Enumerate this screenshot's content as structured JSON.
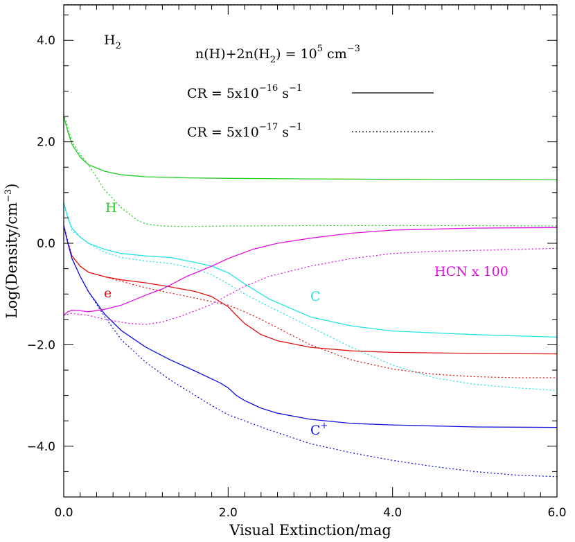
{
  "chart_data": {
    "type": "line",
    "title": "",
    "xlabel": "Visual Extinction/mag",
    "ylabel": "Log(Density/cm",
    "ylabel_sup": "−3",
    "ylabel_tail": ")",
    "xlim": [
      0,
      6
    ],
    "ylim": [
      -5,
      4.7
    ],
    "xticks": [
      {
        "v": 0,
        "label": "0.0"
      },
      {
        "v": 2,
        "label": "2.0"
      },
      {
        "v": 4,
        "label": "4.0"
      },
      {
        "v": 6,
        "label": "6.0"
      }
    ],
    "yticks": [
      {
        "v": -4,
        "label": "−4.0"
      },
      {
        "v": -2,
        "label": "−2.0"
      },
      {
        "v": 0,
        "label": "0.0"
      },
      {
        "v": 2,
        "label": "2.0"
      },
      {
        "v": 4,
        "label": "4.0"
      }
    ],
    "x_minor_step": 0.2,
    "y_minor_step": 0.5,
    "grid": false,
    "legend": {
      "density_prefix": "n(H)+2n(H",
      "density_sub": "2",
      "density_mid": ") = 10",
      "density_exp": "5",
      "density_unit": " cm",
      "density_unit_exp": "−3",
      "cr_high_prefix": "CR = 5x10",
      "cr_high_exp": "−16",
      "cr_high_unit": " s",
      "cr_high_unit_exp": "−1",
      "cr_high_style": "solid",
      "cr_low_prefix": "CR = 5x10",
      "cr_low_exp": "−17",
      "cr_low_unit": " s",
      "cr_low_unit_exp": "−1",
      "cr_low_style": "dotted"
    },
    "labels": {
      "h2": "H",
      "h2_sub": "2",
      "h": "H",
      "e": "e",
      "c": "C",
      "cplus": "C",
      "cplus_sup": "+",
      "hcn": "HCN x 100"
    },
    "colors": {
      "H2": "#000000",
      "H": "#22cc22",
      "C": "#22e5e5",
      "e": "#e01010",
      "Cplus": "#1010dd",
      "HCN": "#e010e0"
    },
    "series": [
      {
        "species": "H2",
        "cr": "5e-16",
        "style": "solid",
        "x": [
          0,
          6
        ],
        "y": [
          4.7,
          4.7
        ]
      },
      {
        "species": "H2",
        "cr": "5e-17",
        "style": "dotted",
        "x": [
          0,
          6
        ],
        "y": [
          4.7,
          4.7
        ]
      },
      {
        "species": "H",
        "cr": "5e-16",
        "style": "solid",
        "x": [
          0,
          0.05,
          0.1,
          0.2,
          0.3,
          0.5,
          0.7,
          1.0,
          1.5,
          2.0,
          3.0,
          4.0,
          5.0,
          6.0
        ],
        "y": [
          2.5,
          2.2,
          1.95,
          1.7,
          1.55,
          1.42,
          1.35,
          1.31,
          1.29,
          1.28,
          1.27,
          1.26,
          1.255,
          1.25
        ]
      },
      {
        "species": "H",
        "cr": "5e-17",
        "style": "dotted",
        "x": [
          0,
          0.1,
          0.2,
          0.3,
          0.5,
          0.7,
          0.9,
          1.0,
          1.2,
          1.5,
          2.0,
          3.0,
          4.0,
          5.0,
          6.0
        ],
        "y": [
          2.55,
          2.0,
          1.75,
          1.55,
          1.05,
          0.7,
          0.45,
          0.38,
          0.34,
          0.33,
          0.34,
          0.35,
          0.35,
          0.35,
          0.34
        ]
      },
      {
        "species": "C",
        "cr": "5e-16",
        "style": "solid",
        "x": [
          0,
          0.05,
          0.1,
          0.2,
          0.3,
          0.5,
          0.7,
          1.0,
          1.3,
          1.6,
          1.8,
          2.0,
          2.2,
          2.5,
          3.0,
          3.5,
          4.0,
          5.0,
          6.0
        ],
        "y": [
          0.8,
          0.5,
          0.3,
          0.12,
          0.0,
          -0.12,
          -0.2,
          -0.25,
          -0.28,
          -0.38,
          -0.45,
          -0.58,
          -0.8,
          -1.1,
          -1.45,
          -1.63,
          -1.73,
          -1.8,
          -1.85
        ]
      },
      {
        "species": "C",
        "cr": "5e-17",
        "style": "dotted",
        "x": [
          0,
          0.1,
          0.3,
          0.5,
          0.7,
          1.0,
          1.3,
          1.6,
          1.8,
          2.0,
          2.2,
          2.5,
          3.0,
          3.5,
          4.0,
          4.5,
          5.0,
          5.5,
          6.0
        ],
        "y": [
          0.8,
          0.25,
          0.0,
          -0.18,
          -0.28,
          -0.35,
          -0.4,
          -0.5,
          -0.62,
          -0.8,
          -1.0,
          -1.25,
          -1.65,
          -2.05,
          -2.4,
          -2.65,
          -2.78,
          -2.85,
          -2.9
        ]
      },
      {
        "species": "e",
        "cr": "5e-16",
        "style": "solid",
        "x": [
          0,
          0.05,
          0.1,
          0.2,
          0.3,
          0.5,
          0.7,
          1.0,
          1.3,
          1.6,
          1.8,
          2.0,
          2.1,
          2.2,
          2.4,
          2.6,
          3.0,
          3.5,
          4.0,
          5.0,
          6.0
        ],
        "y": [
          0.35,
          0.0,
          -0.25,
          -0.45,
          -0.57,
          -0.66,
          -0.72,
          -0.78,
          -0.86,
          -0.95,
          -1.05,
          -1.25,
          -1.42,
          -1.58,
          -1.8,
          -1.92,
          -2.05,
          -2.12,
          -2.15,
          -2.17,
          -2.18
        ]
      },
      {
        "species": "e",
        "cr": "5e-17",
        "style": "dotted",
        "x": [
          0,
          0.1,
          0.2,
          0.3,
          0.5,
          0.7,
          1.0,
          1.3,
          1.6,
          1.8,
          2.0,
          2.2,
          2.4,
          2.7,
          3.0,
          3.5,
          4.0,
          4.5,
          5.0,
          5.5,
          6.0
        ],
        "y": [
          0.35,
          -0.25,
          -0.45,
          -0.57,
          -0.66,
          -0.75,
          -0.88,
          -0.98,
          -1.08,
          -1.15,
          -1.22,
          -1.35,
          -1.5,
          -1.75,
          -2.0,
          -2.3,
          -2.48,
          -2.58,
          -2.63,
          -2.65,
          -2.65
        ]
      },
      {
        "species": "Cplus",
        "cr": "5e-16",
        "style": "solid",
        "x": [
          0,
          0.05,
          0.1,
          0.2,
          0.3,
          0.5,
          0.7,
          1.0,
          1.3,
          1.6,
          1.9,
          2.0,
          2.1,
          2.2,
          2.4,
          2.6,
          3.0,
          3.5,
          4.0,
          5.0,
          6.0
        ],
        "y": [
          0.35,
          0.0,
          -0.3,
          -0.65,
          -0.95,
          -1.4,
          -1.72,
          -2.05,
          -2.3,
          -2.52,
          -2.75,
          -2.85,
          -3.0,
          -3.1,
          -3.25,
          -3.35,
          -3.47,
          -3.55,
          -3.58,
          -3.62,
          -3.63
        ]
      },
      {
        "species": "Cplus",
        "cr": "5e-17",
        "style": "dotted",
        "x": [
          0,
          0.1,
          0.2,
          0.3,
          0.5,
          0.7,
          1.0,
          1.3,
          1.6,
          1.8,
          2.0,
          2.2,
          2.5,
          3.0,
          3.5,
          4.0,
          4.5,
          5.0,
          5.5,
          6.0
        ],
        "y": [
          0.35,
          -0.3,
          -0.65,
          -0.95,
          -1.45,
          -1.9,
          -2.35,
          -2.7,
          -3.0,
          -3.2,
          -3.38,
          -3.5,
          -3.68,
          -3.95,
          -4.13,
          -4.28,
          -4.4,
          -4.5,
          -4.57,
          -4.6
        ]
      },
      {
        "species": "HCN",
        "cr": "5e-16",
        "style": "solid",
        "x": [
          0,
          0.05,
          0.1,
          0.2,
          0.3,
          0.5,
          0.7,
          1.0,
          1.2,
          1.5,
          1.8,
          2.0,
          2.3,
          2.6,
          3.0,
          3.5,
          4.0,
          5.0,
          6.0
        ],
        "y": [
          -1.42,
          -1.35,
          -1.32,
          -1.33,
          -1.35,
          -1.3,
          -1.22,
          -1.02,
          -0.9,
          -0.65,
          -0.45,
          -0.3,
          -0.12,
          0.0,
          0.1,
          0.2,
          0.26,
          0.3,
          0.31
        ]
      },
      {
        "species": "HCN",
        "cr": "5e-17",
        "style": "dotted",
        "x": [
          0,
          0.1,
          0.3,
          0.5,
          0.8,
          1.0,
          1.2,
          1.4,
          1.6,
          1.8,
          2.0,
          2.2,
          2.5,
          3.0,
          3.5,
          4.0,
          4.5,
          5.0,
          5.5,
          6.0
        ],
        "y": [
          -1.42,
          -1.38,
          -1.42,
          -1.5,
          -1.58,
          -1.6,
          -1.55,
          -1.45,
          -1.33,
          -1.2,
          -1.02,
          -0.85,
          -0.65,
          -0.45,
          -0.3,
          -0.2,
          -0.16,
          -0.14,
          -0.12,
          -0.1
        ]
      }
    ]
  }
}
